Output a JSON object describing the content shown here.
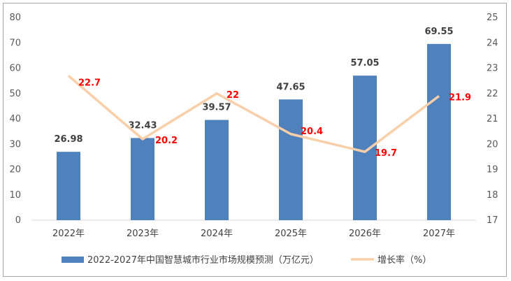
{
  "chart_data": {
    "type": "bar+line",
    "categories": [
      "2022年",
      "2023年",
      "2024年",
      "2025年",
      "2026年",
      "2027年"
    ],
    "series": [
      {
        "name": "2022-2027年中国智慧城市行业市场规模预测（万亿元）",
        "type": "bar",
        "axis": "left",
        "values": [
          26.98,
          32.43,
          39.57,
          47.65,
          57.05,
          69.55
        ],
        "labels": [
          "26.98",
          "32.43",
          "39.57",
          "47.65",
          "57.05",
          "69.55"
        ],
        "color": "#4f81bd"
      },
      {
        "name": "增长率（%）",
        "type": "line",
        "axis": "right",
        "values": [
          22.7,
          20.2,
          22,
          20.4,
          19.7,
          21.9
        ],
        "labels": [
          "22.7",
          "20.2",
          "22",
          "20.4",
          "19.7",
          "21.9"
        ],
        "color": "#f9cfaa",
        "label_color": "#ff0000"
      }
    ],
    "y_left": {
      "min": 0,
      "max": 80,
      "ticks": [
        "0",
        "10",
        "20",
        "30",
        "40",
        "50",
        "60",
        "70",
        "80"
      ]
    },
    "y_right": {
      "min": 17,
      "max": 25,
      "ticks": [
        "17",
        "18",
        "19",
        "20",
        "21",
        "22",
        "23",
        "24",
        "25"
      ]
    },
    "grid": false,
    "legend_position": "bottom"
  }
}
